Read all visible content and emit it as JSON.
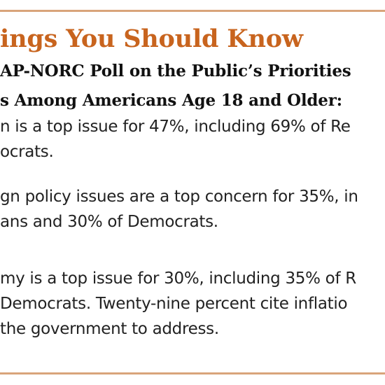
{
  "heading": "ings You Should Know",
  "subheading": {
    "line1": "AP-NORC Poll on the Public’s Priorities",
    "line2": "s Among Americans Age 18 and Older:"
  },
  "items": [
    {
      "line1": "n is a top issue for 47%, including 69% of Re",
      "line2": "ocrats."
    },
    {
      "line1": "gn policy issues are a top concern for 35%, in",
      "line2": "ans and 30% of Democrats."
    },
    {
      "line1": "my is a top issue for 30%, including 35% of R",
      "line2": "Democrats. Twenty-nine percent cite inflatio",
      "line3": "the government to address."
    }
  ],
  "colors": {
    "heading": "#c8641e",
    "rule": "#d9a47a",
    "text": "#222222"
  }
}
